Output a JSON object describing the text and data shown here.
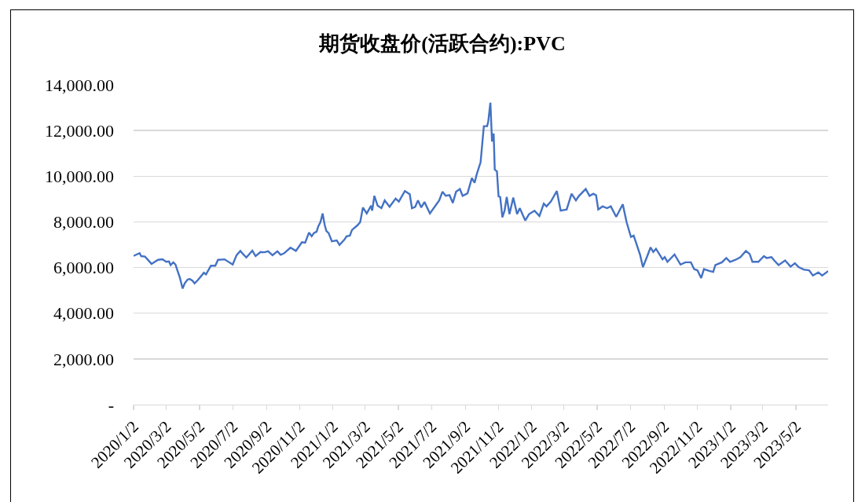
{
  "chart_data": {
    "type": "line",
    "title": "期货收盘价(活跃合约):PVC",
    "color": "#4472c4",
    "x": [
      "2020-01-02",
      "2020-01-13",
      "2020-01-16",
      "2020-01-23",
      "2020-02-04",
      "2020-02-10",
      "2020-02-16",
      "2020-02-24",
      "2020-03-02",
      "2020-03-07",
      "2020-03-10",
      "2020-03-15",
      "2020-03-19",
      "2020-03-24",
      "2020-03-27",
      "2020-04-01",
      "2020-04-05",
      "2020-04-10",
      "2020-04-14",
      "2020-04-19",
      "2020-04-23",
      "2020-04-29",
      "2020-05-10",
      "2020-05-14",
      "2020-05-23",
      "2020-05-31",
      "2020-06-05",
      "2020-06-17",
      "2020-07-02",
      "2020-07-09",
      "2020-07-16",
      "2020-07-21",
      "2020-07-27",
      "2020-08-07",
      "2020-08-13",
      "2020-08-22",
      "2020-08-29",
      "2020-09-05",
      "2020-09-13",
      "2020-09-22",
      "2020-09-28",
      "2020-10-04",
      "2020-10-16",
      "2020-10-26",
      "2020-11-06",
      "2020-11-12",
      "2020-11-15",
      "2020-11-19",
      "2020-11-24",
      "2020-11-28",
      "2020-12-03",
      "2020-12-06",
      "2020-12-10",
      "2020-12-14",
      "2020-12-18",
      "2020-12-21",
      "2020-12-25",
      "2020-12-31",
      "2021-01-09",
      "2021-01-14",
      "2021-01-23",
      "2021-01-27",
      "2021-02-02",
      "2021-02-06",
      "2021-02-16",
      "2021-02-21",
      "2021-02-26",
      "2021-03-05",
      "2021-03-13",
      "2021-03-15",
      "2021-03-19",
      "2021-03-25",
      "2021-04-01",
      "2021-04-07",
      "2021-04-16",
      "2021-04-27",
      "2021-05-03",
      "2021-05-14",
      "2021-05-23",
      "2021-05-27",
      "2021-06-02",
      "2021-06-07",
      "2021-06-13",
      "2021-06-19",
      "2021-06-29",
      "2021-07-11",
      "2021-07-16",
      "2021-07-22",
      "2021-07-28",
      "2021-08-04",
      "2021-08-10",
      "2021-08-16",
      "2021-08-23",
      "2021-08-28",
      "2021-09-06",
      "2021-09-14",
      "2021-09-19",
      "2021-09-23",
      "2021-09-30",
      "2021-10-06",
      "2021-10-12",
      "2021-10-14",
      "2021-10-18",
      "2021-10-21",
      "2021-10-24",
      "2021-10-26",
      "2021-10-30",
      "2021-11-02",
      "2021-11-05",
      "2021-11-09",
      "2021-11-13",
      "2021-11-17",
      "2021-11-22",
      "2021-11-29",
      "2021-12-06",
      "2021-12-11",
      "2021-12-21",
      "2021-12-28",
      "2022-01-07",
      "2022-01-16",
      "2022-01-24",
      "2022-01-29",
      "2022-02-06",
      "2022-02-17",
      "2022-02-24",
      "2022-03-07",
      "2022-03-16",
      "2022-03-24",
      "2022-03-29",
      "2022-04-11",
      "2022-04-18",
      "2022-04-25",
      "2022-04-30",
      "2022-05-04",
      "2022-05-12",
      "2022-05-20",
      "2022-05-27",
      "2022-06-06",
      "2022-06-18",
      "2022-06-25",
      "2022-07-03",
      "2022-07-08",
      "2022-07-13",
      "2022-07-20",
      "2022-07-25",
      "2022-08-01",
      "2022-08-08",
      "2022-08-13",
      "2022-08-18",
      "2022-08-30",
      "2022-09-03",
      "2022-09-08",
      "2022-09-21",
      "2022-10-02",
      "2022-10-11",
      "2022-10-21",
      "2022-10-27",
      "2022-11-02",
      "2022-11-09",
      "2022-11-14",
      "2022-11-24",
      "2022-12-01",
      "2022-12-05",
      "2022-12-17",
      "2022-12-25",
      "2023-01-01",
      "2023-01-11",
      "2023-01-20",
      "2023-01-30",
      "2023-02-06",
      "2023-02-11",
      "2023-02-22",
      "2023-03-04",
      "2023-03-09",
      "2023-03-18",
      "2023-03-23",
      "2023-03-31",
      "2023-04-12",
      "2023-04-22",
      "2023-04-30",
      "2023-05-07",
      "2023-05-16",
      "2023-05-26",
      "2023-06-02",
      "2023-06-12",
      "2023-06-19",
      "2023-06-28",
      "2023-06-30"
    ],
    "values": [
      6510,
      6630,
      6500,
      6480,
      6160,
      6250,
      6340,
      6360,
      6250,
      6270,
      6110,
      6230,
      6130,
      5770,
      5560,
      5080,
      5310,
      5470,
      5500,
      5430,
      5310,
      5450,
      5770,
      5700,
      6080,
      6080,
      6340,
      6360,
      6130,
      6540,
      6730,
      6590,
      6440,
      6740,
      6500,
      6680,
      6670,
      6710,
      6540,
      6710,
      6560,
      6620,
      6870,
      6730,
      7110,
      7090,
      7280,
      7530,
      7370,
      7510,
      7570,
      7800,
      7990,
      8370,
      7850,
      7600,
      7510,
      7150,
      7190,
      6990,
      7220,
      7370,
      7400,
      7650,
      7850,
      7990,
      8630,
      8370,
      8710,
      8490,
      9140,
      8710,
      8600,
      8940,
      8660,
      9020,
      8890,
      9350,
      9210,
      8600,
      8660,
      8940,
      8630,
      8870,
      8370,
      8770,
      8940,
      9320,
      9140,
      9170,
      8830,
      9320,
      9440,
      9140,
      9250,
      9920,
      9710,
      10090,
      10610,
      12190,
      12190,
      12380,
      13220,
      11520,
      11870,
      10290,
      10210,
      9120,
      9090,
      8200,
      8490,
      9090,
      8340,
      9060,
      8340,
      8600,
      8060,
      8340,
      8490,
      8260,
      8800,
      8680,
      8890,
      9350,
      8490,
      8540,
      9230,
      8940,
      9120,
      9440,
      9140,
      9230,
      9170,
      8540,
      8680,
      8600,
      8680,
      8220,
      8770,
      7990,
      7340,
      7400,
      7050,
      6540,
      6020,
      6440,
      6880,
      6680,
      6820,
      6360,
      6460,
      6250,
      6570,
      6130,
      6230,
      6230,
      5930,
      5880,
      5540,
      5930,
      5850,
      5810,
      6110,
      6230,
      6420,
      6250,
      6340,
      6460,
      6730,
      6590,
      6250,
      6250,
      6500,
      6420,
      6460,
      6310,
      6110,
      6310,
      6040,
      6190,
      6020,
      5910,
      5880,
      5650,
      5790,
      5650,
      5810,
      5850
    ],
    "xlim": [
      "2020-01-02",
      "2023-06-30"
    ],
    "xticks": [
      {
        "value": "2020-01-02",
        "label": "2020/1/2"
      },
      {
        "value": "2020-03-02",
        "label": "2020/3/2"
      },
      {
        "value": "2020-05-02",
        "label": "2020/5/2"
      },
      {
        "value": "2020-07-02",
        "label": "2020/7/2"
      },
      {
        "value": "2020-09-02",
        "label": "2020/9/2"
      },
      {
        "value": "2020-11-02",
        "label": "2020/11/2"
      },
      {
        "value": "2021-01-02",
        "label": "2021/1/2"
      },
      {
        "value": "2021-03-02",
        "label": "2021/3/2"
      },
      {
        "value": "2021-05-02",
        "label": "2021/5/2"
      },
      {
        "value": "2021-07-02",
        "label": "2021/7/2"
      },
      {
        "value": "2021-09-02",
        "label": "2021/9/2"
      },
      {
        "value": "2021-11-02",
        "label": "2021/11/2"
      },
      {
        "value": "2022-01-02",
        "label": "2022/1/2"
      },
      {
        "value": "2022-03-02",
        "label": "2022/3/2"
      },
      {
        "value": "2022-05-02",
        "label": "2022/5/2"
      },
      {
        "value": "2022-07-02",
        "label": "2022/7/2"
      },
      {
        "value": "2022-09-02",
        "label": "2022/9/2"
      },
      {
        "value": "2022-11-02",
        "label": "2022/11/2"
      },
      {
        "value": "2023-01-02",
        "label": "2023/1/2"
      },
      {
        "value": "2023-03-02",
        "label": "2023/3/2"
      },
      {
        "value": "2023-05-02",
        "label": "2023/5/2"
      }
    ],
    "ylim": [
      0,
      14000
    ],
    "yticks": [
      {
        "value": 0,
        "label": "-"
      },
      {
        "value": 2000,
        "label": "2,000.00"
      },
      {
        "value": 4000,
        "label": "4,000.00"
      },
      {
        "value": 6000,
        "label": "6,000.00"
      },
      {
        "value": 8000,
        "label": "8,000.00"
      },
      {
        "value": 10000,
        "label": "10,000.00"
      },
      {
        "value": 12000,
        "label": "12,000.00"
      },
      {
        "value": 14000,
        "label": "14,000.00"
      }
    ],
    "grid": "y"
  }
}
